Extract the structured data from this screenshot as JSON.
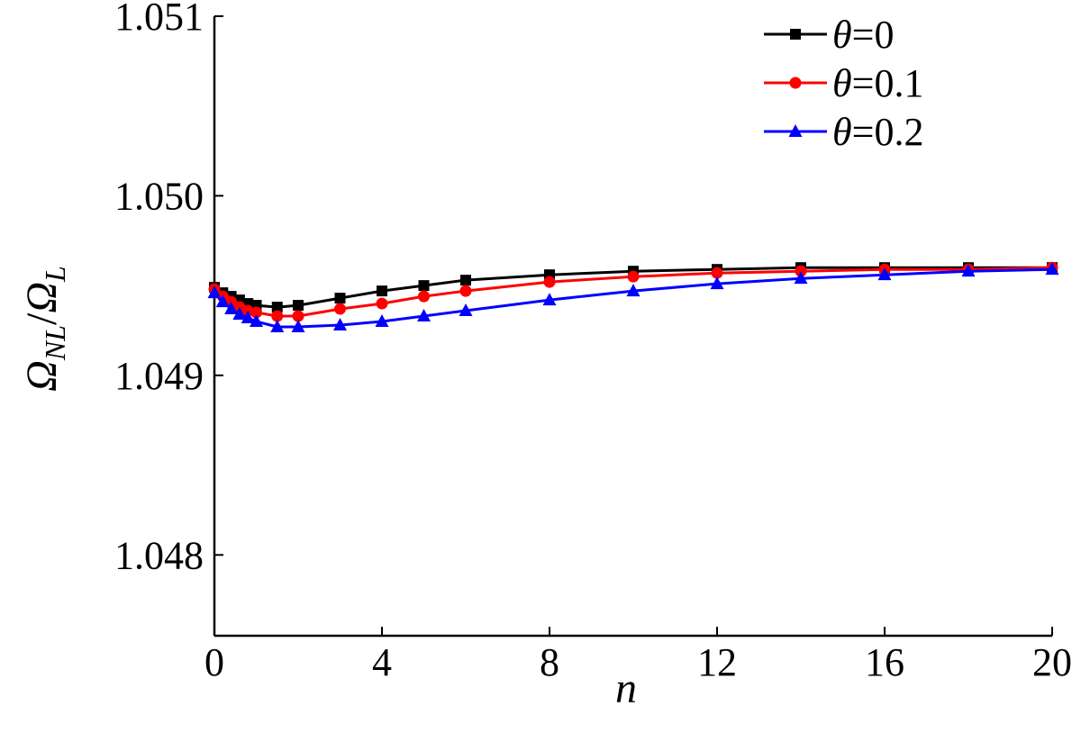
{
  "chart_data": {
    "type": "line",
    "xlabel": "n",
    "ylabel_main": "Ω",
    "ylabel_sub1": "NL",
    "ylabel_sep": "/",
    "ylabel_sub2": "L",
    "xlim": [
      0,
      20
    ],
    "ylim": [
      1.04755,
      1.051
    ],
    "xticks": [
      0,
      4,
      8,
      12,
      16,
      20
    ],
    "xtick_labels": [
      "0",
      "4",
      "8",
      "12",
      "16",
      "20"
    ],
    "yticks": [
      1.048,
      1.049,
      1.05,
      1.051
    ],
    "ytick_labels": [
      "1.048",
      "1.049",
      "1.050",
      "1.051"
    ],
    "grid": false,
    "legend_position": "top-right",
    "series": [
      {
        "name_symbol": "θ",
        "name_value": "=0",
        "color": "#000000",
        "marker": "square",
        "x": [
          0,
          0.2,
          0.4,
          0.6,
          0.8,
          1,
          1.5,
          2,
          3,
          4,
          5,
          6,
          8,
          10,
          12,
          14,
          16,
          18,
          20
        ],
        "y": [
          1.04949,
          1.04946,
          1.04944,
          1.04942,
          1.0494,
          1.04939,
          1.04938,
          1.04939,
          1.04943,
          1.04947,
          1.0495,
          1.04953,
          1.04956,
          1.04958,
          1.04959,
          1.0496,
          1.0496,
          1.0496,
          1.0496
        ]
      },
      {
        "name_symbol": "θ",
        "name_value": "=0.1",
        "color": "#ff0000",
        "marker": "circle",
        "x": [
          0,
          0.2,
          0.4,
          0.6,
          0.8,
          1,
          1.5,
          2,
          3,
          4,
          5,
          6,
          8,
          10,
          12,
          14,
          16,
          18,
          20
        ],
        "y": [
          1.04948,
          1.04944,
          1.04941,
          1.04938,
          1.04936,
          1.04935,
          1.04933,
          1.04933,
          1.04937,
          1.0494,
          1.04944,
          1.04947,
          1.04952,
          1.04955,
          1.04957,
          1.04958,
          1.04959,
          1.04959,
          1.0496
        ]
      },
      {
        "name_symbol": "θ",
        "name_value": "=0.2",
        "color": "#0000ff",
        "marker": "triangle",
        "x": [
          0,
          0.2,
          0.4,
          0.6,
          0.8,
          1,
          1.5,
          2,
          3,
          4,
          5,
          6,
          8,
          10,
          12,
          14,
          16,
          18,
          20
        ],
        "y": [
          1.04946,
          1.04941,
          1.04937,
          1.04934,
          1.04932,
          1.0493,
          1.04927,
          1.04927,
          1.04928,
          1.0493,
          1.04933,
          1.04936,
          1.04942,
          1.04947,
          1.04951,
          1.04954,
          1.04956,
          1.04958,
          1.04959
        ]
      }
    ]
  }
}
